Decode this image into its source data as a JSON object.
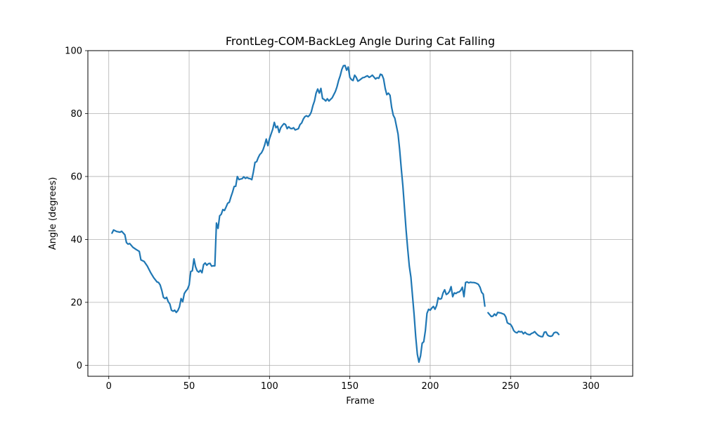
{
  "chart_data": {
    "type": "line",
    "title": "FrontLeg-COM-BackLeg Angle During Cat Falling",
    "xlabel": "Frame",
    "ylabel": "Angle (degrees)",
    "xlim": [
      -13,
      326
    ],
    "ylim": [
      -3.5,
      100
    ],
    "xticks": [
      0,
      50,
      100,
      150,
      200,
      250,
      300
    ],
    "yticks": [
      0,
      20,
      40,
      60,
      80,
      100
    ],
    "grid": true,
    "series": [
      {
        "color": "#1f77b4",
        "segments": [
          [
            [
              2,
              42
            ],
            [
              3,
              43
            ],
            [
              5,
              42.5
            ],
            [
              7,
              42.3
            ],
            [
              8,
              42.6
            ],
            [
              10,
              41.5
            ],
            [
              11,
              39
            ],
            [
              12,
              38.5
            ],
            [
              13,
              38.7
            ],
            [
              15,
              37.5
            ],
            [
              17,
              36.8
            ],
            [
              19,
              36.2
            ],
            [
              20,
              33.5
            ],
            [
              22,
              33
            ],
            [
              24,
              31.5
            ],
            [
              26,
              29.5
            ],
            [
              28,
              27.8
            ],
            [
              30,
              26.5
            ],
            [
              31,
              26.3
            ],
            [
              32,
              25.5
            ],
            [
              33,
              23.8
            ],
            [
              34,
              21.6
            ],
            [
              35,
              21.2
            ],
            [
              36,
              21.6
            ],
            [
              37,
              20.2
            ],
            [
              38,
              19.5
            ],
            [
              39,
              17.5
            ],
            [
              40,
              17.2
            ],
            [
              41,
              17.5
            ],
            [
              42,
              16.8
            ],
            [
              43,
              17.4
            ],
            [
              44,
              18.6
            ],
            [
              45,
              21.2
            ],
            [
              46,
              20.2
            ],
            [
              47,
              22.8
            ],
            [
              48,
              23.6
            ],
            [
              49,
              24.2
            ],
            [
              50,
              25.5
            ],
            [
              51,
              29.8
            ],
            [
              52,
              30
            ],
            [
              53,
              33.8
            ],
            [
              54,
              31.3
            ],
            [
              55,
              30
            ],
            [
              56,
              29.6
            ],
            [
              57,
              30.2
            ],
            [
              58,
              29.4
            ],
            [
              59,
              32
            ],
            [
              60,
              32.5
            ],
            [
              61,
              31.8
            ],
            [
              62,
              32.3
            ],
            [
              63,
              32.4
            ],
            [
              64,
              31.5
            ],
            [
              65,
              31.6
            ],
            [
              66,
              31.6
            ],
            [
              67,
              45.2
            ],
            [
              68,
              43.5
            ],
            [
              69,
              47.5
            ],
            [
              70,
              48
            ],
            [
              71,
              49.5
            ],
            [
              72,
              49.2
            ],
            [
              73,
              50.3
            ],
            [
              74,
              51.5
            ],
            [
              75,
              51.8
            ],
            [
              76,
              53.5
            ],
            [
              77,
              55
            ],
            [
              78,
              56.8
            ],
            [
              79,
              56.9
            ],
            [
              80,
              60
            ],
            [
              81,
              59
            ],
            [
              82,
              59.2
            ],
            [
              83,
              59.3
            ],
            [
              84,
              59.9
            ],
            [
              85,
              59.4
            ],
            [
              86,
              59.7
            ],
            [
              87,
              59.4
            ],
            [
              88,
              59.3
            ],
            [
              89,
              59
            ],
            [
              90,
              61.5
            ],
            [
              91,
              64.5
            ],
            [
              92,
              64.7
            ],
            [
              93,
              66
            ],
            [
              94,
              67
            ],
            [
              95,
              67.5
            ],
            [
              96,
              68.5
            ],
            [
              97,
              70
            ],
            [
              98,
              71.9
            ],
            [
              99,
              69.8
            ],
            [
              100,
              72
            ],
            [
              101,
              73.5
            ],
            [
              102,
              75
            ],
            [
              103,
              77.2
            ],
            [
              104,
              75.5
            ],
            [
              105,
              76
            ],
            [
              106,
              74
            ],
            [
              107,
              75.5
            ],
            [
              108,
              76.2
            ],
            [
              109,
              76.8
            ],
            [
              110,
              76.5
            ],
            [
              111,
              75.2
            ],
            [
              112,
              75.8
            ],
            [
              113,
              75.3
            ],
            [
              114,
              75.2
            ],
            [
              115,
              75.5
            ],
            [
              116,
              74.8
            ],
            [
              117,
              75
            ],
            [
              118,
              75.2
            ],
            [
              119,
              76.5
            ],
            [
              120,
              77
            ],
            [
              121,
              78.2
            ],
            [
              122,
              79
            ],
            [
              123,
              79.3
            ],
            [
              124,
              79
            ],
            [
              125,
              79.5
            ],
            [
              126,
              80.5
            ],
            [
              127,
              82.5
            ],
            [
              128,
              84
            ],
            [
              129,
              86.5
            ],
            [
              130,
              87.8
            ],
            [
              131,
              86.5
            ],
            [
              132,
              88
            ],
            [
              133,
              84.8
            ],
            [
              134,
              84.5
            ],
            [
              135,
              84
            ],
            [
              136,
              84.7
            ],
            [
              137,
              84
            ],
            [
              138,
              84.5
            ],
            [
              139,
              85
            ],
            [
              140,
              86
            ],
            [
              141,
              87
            ],
            [
              142,
              88.5
            ],
            [
              143,
              90.5
            ],
            [
              144,
              92
            ],
            [
              145,
              94
            ],
            [
              146,
              95.2
            ],
            [
              147,
              95.3
            ],
            [
              148,
              93.8
            ],
            [
              149,
              94.8
            ],
            [
              150,
              91.5
            ],
            [
              151,
              90.8
            ],
            [
              152,
              90.5
            ],
            [
              153,
              92.2
            ],
            [
              154,
              91.5
            ],
            [
              155,
              90.3
            ],
            [
              156,
              90.6
            ],
            [
              157,
              91
            ],
            [
              158,
              91.4
            ],
            [
              159,
              91.5
            ],
            [
              160,
              91.8
            ],
            [
              161,
              92
            ],
            [
              162,
              91.5
            ],
            [
              163,
              91.8
            ],
            [
              164,
              92.2
            ],
            [
              165,
              91.6
            ],
            [
              166,
              91
            ],
            [
              167,
              91.4
            ],
            [
              168,
              91.2
            ],
            [
              169,
              92.5
            ],
            [
              170,
              92.3
            ],
            [
              171,
              91
            ],
            [
              172,
              88
            ],
            [
              173,
              86
            ],
            [
              174,
              86.5
            ],
            [
              175,
              85.8
            ],
            [
              176,
              82
            ],
            [
              177,
              79.5
            ],
            [
              178,
              78.5
            ],
            [
              179,
              76
            ],
            [
              180,
              73.5
            ],
            [
              181,
              68.5
            ],
            [
              182,
              62.5
            ],
            [
              183,
              57
            ],
            [
              184,
              50
            ],
            [
              185,
              43
            ],
            [
              186,
              37
            ],
            [
              187,
              31.5
            ],
            [
              188,
              28
            ],
            [
              189,
              22
            ],
            [
              190,
              16
            ],
            [
              191,
              9
            ],
            [
              192,
              3.5
            ],
            [
              193,
              1
            ],
            [
              194,
              3
            ],
            [
              195,
              7
            ],
            [
              196,
              7.5
            ],
            [
              197,
              11
            ],
            [
              198,
              16.5
            ],
            [
              199,
              17.8
            ],
            [
              200,
              17.5
            ],
            [
              201,
              18.2
            ],
            [
              202,
              18.7
            ],
            [
              203,
              17.8
            ],
            [
              204,
              19
            ],
            [
              205,
              21.5
            ],
            [
              206,
              21
            ],
            [
              207,
              21.2
            ],
            [
              208,
              23
            ],
            [
              209,
              24
            ],
            [
              210,
              22.5
            ],
            [
              211,
              22.8
            ],
            [
              212,
              23.5
            ],
            [
              213,
              25
            ],
            [
              214,
              21.8
            ],
            [
              215,
              23
            ],
            [
              216,
              22.8
            ],
            [
              217,
              23.2
            ],
            [
              218,
              23.3
            ],
            [
              219,
              23.8
            ],
            [
              220,
              24.8
            ],
            [
              221,
              21.8
            ],
            [
              222,
              26.3
            ],
            [
              223,
              26.5
            ],
            [
              224,
              26.2
            ],
            [
              225,
              26.4
            ],
            [
              226,
              26.3
            ],
            [
              227,
              26.3
            ],
            [
              228,
              26.2
            ],
            [
              229,
              26
            ],
            [
              230,
              25.7
            ],
            [
              231,
              24.8
            ],
            [
              232,
              23.2
            ],
            [
              233,
              22.6
            ],
            [
              234,
              18.8
            ]
          ],
          [
            [
              236,
              16.7
            ],
            [
              237,
              16.1
            ],
            [
              238,
              15.5
            ],
            [
              239,
              15.6
            ],
            [
              240,
              16.3
            ],
            [
              241,
              15.8
            ],
            [
              242,
              16.8
            ],
            [
              243,
              16.7
            ],
            [
              244,
              16.6
            ],
            [
              245,
              16.4
            ],
            [
              246,
              16.2
            ],
            [
              247,
              15.4
            ],
            [
              248,
              13.5
            ],
            [
              249,
              13.2
            ],
            [
              250,
              13
            ],
            [
              251,
              12.2
            ],
            [
              252,
              11
            ],
            [
              253,
              10.5
            ],
            [
              254,
              10.3
            ],
            [
              255,
              10.8
            ],
            [
              256,
              10.6
            ],
            [
              257,
              10.7
            ],
            [
              258,
              10
            ],
            [
              259,
              10.5
            ],
            [
              260,
              10
            ],
            [
              261,
              9.8
            ],
            [
              262,
              9.7
            ],
            [
              263,
              10.1
            ],
            [
              264,
              10.3
            ],
            [
              265,
              10.7
            ],
            [
              266,
              10.1
            ],
            [
              267,
              9.6
            ],
            [
              268,
              9.3
            ],
            [
              269,
              9.1
            ],
            [
              270,
              9.1
            ],
            [
              271,
              10.5
            ],
            [
              272,
              10.6
            ],
            [
              273,
              9.6
            ],
            [
              274,
              9.3
            ],
            [
              275,
              9.2
            ],
            [
              276,
              9.4
            ],
            [
              277,
              10.3
            ],
            [
              278,
              10.5
            ],
            [
              279,
              10.4
            ],
            [
              280,
              9.8
            ]
          ]
        ]
      }
    ]
  }
}
